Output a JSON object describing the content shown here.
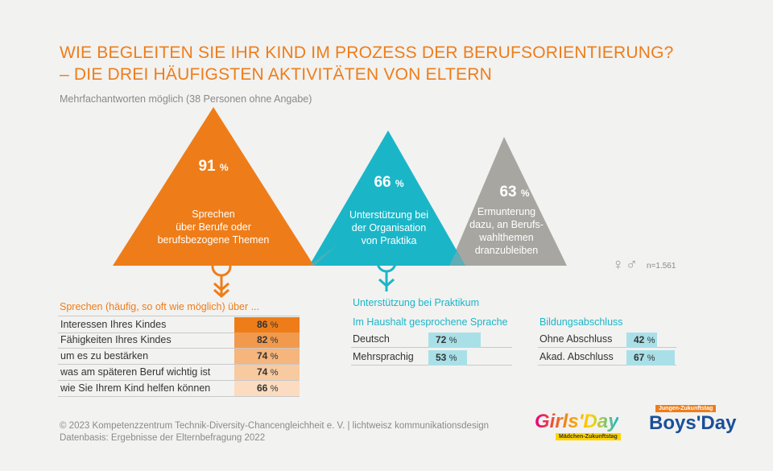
{
  "title_line1": "WIE BEGLEITEN SIE IHR KIND IM PROZESS DER BERUFSORIENTIERUNG?",
  "title_line2": "– DIE DREI HÄUFIGSTEN AKTIVITÄTEN VON ELTERN",
  "subtitle": "Mehrfachantworten möglich (38 Personen ohne Angabe)",
  "triangles": [
    {
      "value": "91",
      "unit": "%",
      "label": [
        "Sprechen",
        "über Berufe oder",
        "berufsbezogene Themen"
      ],
      "color": "#ee7d19"
    },
    {
      "value": "66",
      "unit": "%",
      "label": [
        "Unterstützung bei",
        "der Organisation",
        "von Praktika"
      ],
      "color": "#1ab6c8"
    },
    {
      "value": "63",
      "unit": "%",
      "label": [
        "Ermunterung",
        "dazu, an Berufs-",
        "wahlthemen",
        "dranzubleiben"
      ],
      "color": "#a8a6a1"
    }
  ],
  "gender_symbols": "♀♂",
  "n_label": "n=1.561",
  "chart_data": [
    {
      "type": "bar",
      "title": "Sprechen (häufig, so oft wie möglich) über ...",
      "categories": [
        "Interessen Ihres Kindes",
        "Fähigkeiten Ihres Kindes",
        "um es zu bestärken",
        "was am späteren Beruf wichtig ist",
        "wie Sie Ihrem Kind helfen können"
      ],
      "values": [
        86,
        82,
        74,
        74,
        66
      ],
      "unit": "%",
      "colors": [
        "#ee7d19",
        "#f19a4e",
        "#f5b57c",
        "#f8caa0",
        "#fbdcc0"
      ]
    },
    {
      "type": "bar",
      "title": "Unterstützung bei Praktikum",
      "groups": [
        {
          "title": "Im Haushalt gesprochene Sprache",
          "categories": [
            "Deutsch",
            "Mehrsprachig"
          ],
          "values": [
            72,
            53
          ],
          "unit": "%"
        },
        {
          "title": "Bildungsabschluss",
          "categories": [
            "Ohne Abschluss",
            "Akad. Abschluss"
          ],
          "values": [
            42,
            67
          ],
          "unit": "%"
        }
      ],
      "color": "#a9e0e8"
    }
  ],
  "footer_line1": "© 2023  Kompetenzzentrum Technik-Diversity-Chancengleichheit e. V. | lichtweisz kommunikationsdesign",
  "footer_line2": "Datenbasis: Ergebnisse der Elternbefragung 2022",
  "logo_girls": "Girls'Day",
  "logo_girls_sub": "Mädchen-Zukunftstag",
  "logo_boys_top": "Jungen-Zukunftstag",
  "logo_boys": "Boys'Day"
}
